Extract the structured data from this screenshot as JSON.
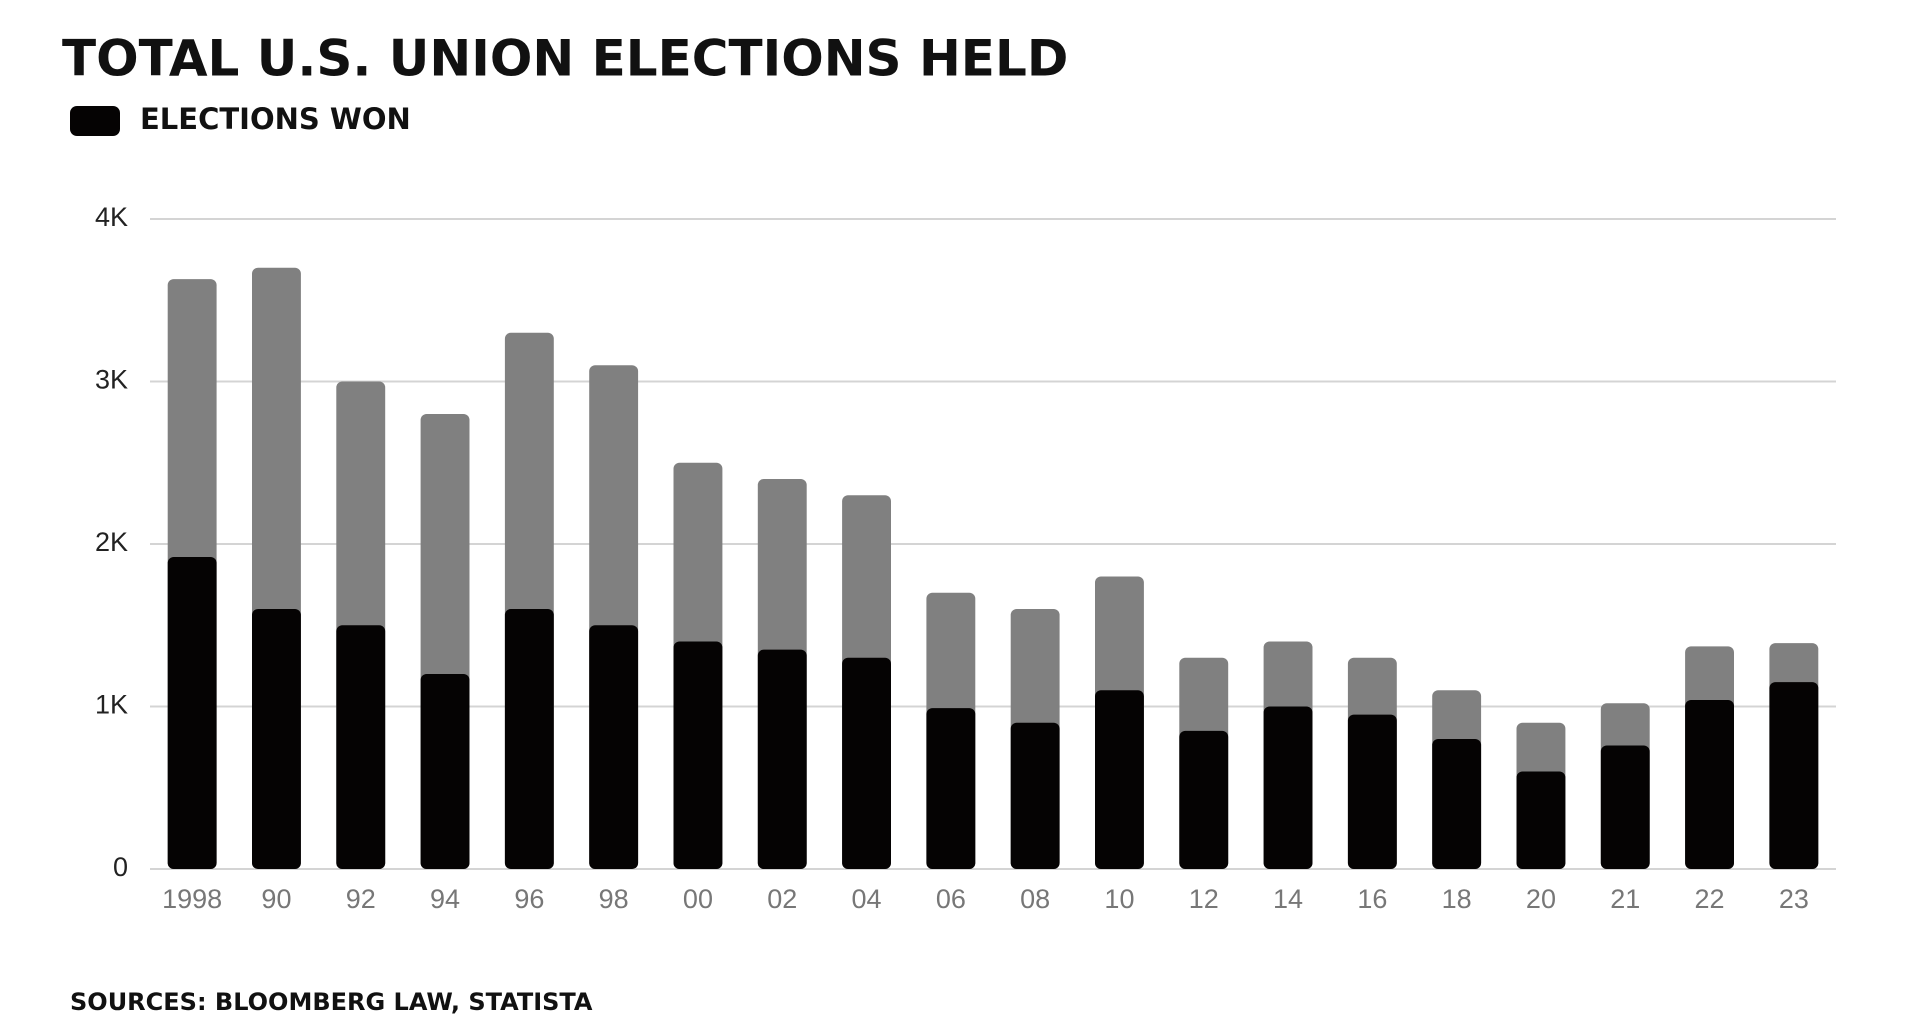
{
  "chart_data": {
    "type": "bar",
    "title": "TOTAL U.S. UNION ELECTIONS HELD",
    "source": "SOURCES: BLOOMBERG LAW, STATISTA",
    "categories": [
      "1998",
      "90",
      "92",
      "94",
      "96",
      "98",
      "00",
      "02",
      "04",
      "06",
      "08",
      "10",
      "12",
      "14",
      "16",
      "18",
      "20",
      "21",
      "22",
      "23"
    ],
    "values": [
      3630,
      3700,
      3000,
      2800,
      3300,
      3100,
      2500,
      2400,
      2300,
      1700,
      1600,
      1800,
      1300,
      1400,
      1300,
      1100,
      900,
      1020,
      1370,
      1390
    ],
    "color": "#808080",
    "series": [
      {
        "name": "ELECTIONS WON",
        "color": "#050303",
        "values": [
          1920,
          1600,
          1500,
          1200,
          1600,
          1500,
          1400,
          1350,
          1300,
          990,
          900,
          1100,
          850,
          1000,
          950,
          800,
          600,
          760,
          1040,
          1150
        ]
      }
    ],
    "ylim": [
      0,
      4000
    ],
    "yticks": [
      0,
      {
        "value": 1000,
        "label": "1K"
      },
      {
        "value": 2000,
        "label": "2K"
      },
      {
        "value": 3000,
        "label": "3K"
      },
      {
        "value": 4000,
        "label": "4K"
      }
    ],
    "grid": true
  }
}
